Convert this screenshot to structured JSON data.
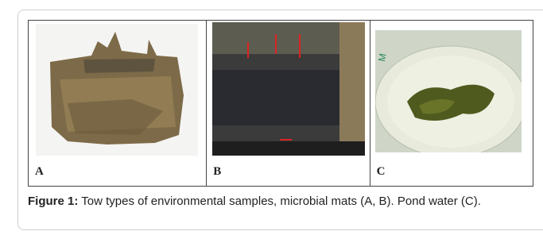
{
  "figure": {
    "panels": [
      {
        "label": "A"
      },
      {
        "label": "B"
      },
      {
        "label": "C"
      }
    ],
    "caption": {
      "label": "Figure 1:",
      "text": "Tow types of environmental samples, microbial mats (A, B). Pond water (C)."
    }
  }
}
